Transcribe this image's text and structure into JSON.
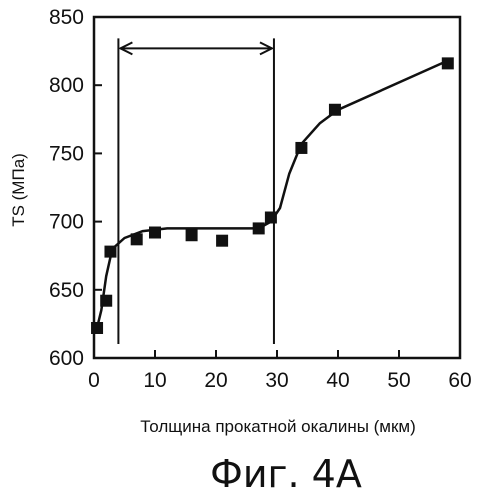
{
  "chart_data": {
    "type": "scatter",
    "xlabel": "Толщина прокатной окалины (мкм)",
    "ylabel": "TS (МПа)",
    "xlim": [
      0,
      60
    ],
    "ylim": [
      600,
      850
    ],
    "x_ticks": [
      "0",
      "10",
      "20",
      "30",
      "40",
      "50",
      "60"
    ],
    "y_ticks": [
      "600",
      "650",
      "700",
      "750",
      "800",
      "850"
    ],
    "grid": false,
    "points": [
      {
        "x": 0.5,
        "y": 622
      },
      {
        "x": 2,
        "y": 642
      },
      {
        "x": 2.7,
        "y": 678
      },
      {
        "x": 7,
        "y": 687
      },
      {
        "x": 10,
        "y": 692
      },
      {
        "x": 16,
        "y": 690
      },
      {
        "x": 21,
        "y": 686
      },
      {
        "x": 27,
        "y": 695
      },
      {
        "x": 29,
        "y": 703
      },
      {
        "x": 34,
        "y": 754
      },
      {
        "x": 39.5,
        "y": 782
      },
      {
        "x": 58,
        "y": 816
      }
    ],
    "trend_curve": [
      {
        "x": 0.5,
        "y": 622
      },
      {
        "x": 1.2,
        "y": 635
      },
      {
        "x": 2,
        "y": 660
      },
      {
        "x": 3,
        "y": 680
      },
      {
        "x": 5,
        "y": 688
      },
      {
        "x": 8,
        "y": 693
      },
      {
        "x": 12,
        "y": 695
      },
      {
        "x": 20,
        "y": 695
      },
      {
        "x": 27,
        "y": 695
      },
      {
        "x": 29,
        "y": 700
      },
      {
        "x": 30.5,
        "y": 710
      },
      {
        "x": 32,
        "y": 735
      },
      {
        "x": 34,
        "y": 757
      },
      {
        "x": 37,
        "y": 772
      },
      {
        "x": 40,
        "y": 782
      },
      {
        "x": 58,
        "y": 818
      }
    ],
    "range_markers": {
      "x_start": 4,
      "x_end": 29.5,
      "arrow_y": 827
    }
  },
  "figure_label": "Фиг. 4А"
}
